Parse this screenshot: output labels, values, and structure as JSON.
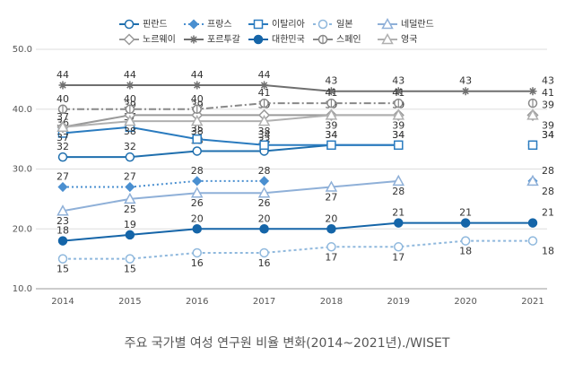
{
  "chart_data": {
    "type": "line",
    "caption": "주요 국가별 여성 연구원 비율 변화(2014~2021년)./WISET",
    "categories": [
      "2014",
      "2015",
      "2016",
      "2017",
      "2018",
      "2019",
      "2020",
      "2021"
    ],
    "ylim": [
      10,
      50
    ],
    "yticks": [
      {
        "value": 10,
        "label": "10.0"
      },
      {
        "value": 20,
        "label": "20.0"
      },
      {
        "value": 30,
        "label": "30.0"
      },
      {
        "value": 40,
        "label": "40.0"
      },
      {
        "value": 50,
        "label": "50.0"
      }
    ],
    "grid": true,
    "series": [
      {
        "name": "핀란드",
        "color": "#1f6fae",
        "values": [
          32,
          32,
          33,
          33,
          34,
          34,
          null,
          34
        ]
      },
      {
        "name": "프랑스",
        "color": "#4a8fd0",
        "values": [
          27,
          27,
          28,
          28,
          null,
          null,
          null,
          28
        ]
      },
      {
        "name": "이탈리아",
        "color": "#2a7bbf",
        "values": [
          36,
          37,
          35,
          34,
          34,
          34,
          null,
          34
        ]
      },
      {
        "name": "일본",
        "color": "#8fb8dd",
        "values": [
          15,
          15,
          16,
          16,
          17,
          17,
          18,
          18
        ]
      },
      {
        "name": "네덜란드",
        "color": "#8fb0d8",
        "values": [
          23,
          25,
          26,
          26,
          27,
          28,
          null,
          28
        ]
      },
      {
        "name": "노르웨이",
        "color": "#9a9a9a",
        "values": [
          37,
          39,
          39,
          39,
          39,
          39,
          null,
          39
        ]
      },
      {
        "name": "포르투갈",
        "color": "#6f6f6f",
        "values": [
          44,
          44,
          44,
          44,
          43,
          43,
          43,
          43
        ]
      },
      {
        "name": "대한민국",
        "color": "#1565a8",
        "values": [
          18,
          19,
          20,
          20,
          20,
          21,
          21,
          21
        ]
      },
      {
        "name": "스페인",
        "color": "#888888",
        "values": [
          40,
          40,
          40,
          41,
          41,
          41,
          null,
          41
        ]
      },
      {
        "name": "영국",
        "color": "#b0b0b0",
        "values": [
          37,
          38,
          38,
          38,
          39,
          39,
          null,
          39
        ]
      }
    ]
  }
}
